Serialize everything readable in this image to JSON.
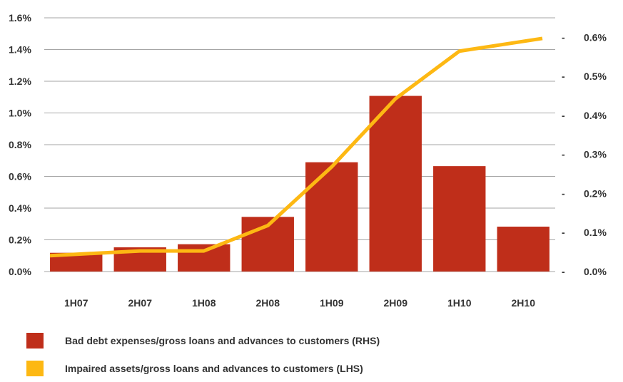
{
  "chart_data": {
    "type": "bar",
    "categories": [
      "1H07",
      "2H07",
      "1H08",
      "2H08",
      "1H09",
      "2H09",
      "1H10",
      "2H10"
    ],
    "series": [
      {
        "name": "Bad debt expenses/gross loans and advances to customers (RHS)",
        "kind": "bar",
        "axis": "right",
        "color": "#BF2E1A",
        "values": [
          0.048,
          0.062,
          0.07,
          0.14,
          0.28,
          0.45,
          0.27,
          0.115
        ]
      },
      {
        "name": "Impaired assets/gross loans and advances to customers (LHS)",
        "kind": "line",
        "axis": "left",
        "color": "#FDB813",
        "values": [
          0.1,
          0.13,
          0.13,
          0.29,
          0.66,
          1.09,
          1.39,
          1.47
        ]
      }
    ],
    "y_left": {
      "ylim": [
        0,
        1.6
      ],
      "ticks": [
        "0.0%",
        "0.2%",
        "0.4%",
        "0.6%",
        "0.8%",
        "1.0%",
        "1.2%",
        "1.4%",
        "1.6%"
      ]
    },
    "y_right": {
      "ylim": [
        0,
        0.65
      ],
      "ticks": [
        "0.0%",
        "0.1%",
        "0.2%",
        "0.3%",
        "0.4%",
        "0.5%",
        "0.6%"
      ],
      "tick_marks": [
        "-",
        "-",
        "-",
        "-",
        "-",
        "-",
        "-"
      ]
    },
    "grid": true,
    "legend_position": "bottom-left"
  }
}
